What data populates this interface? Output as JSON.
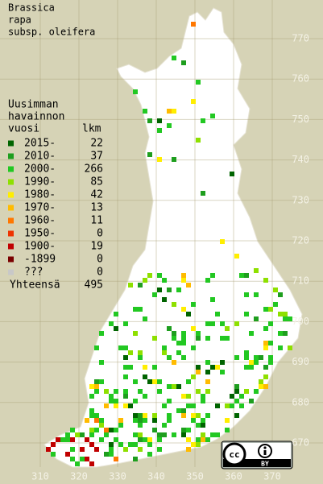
{
  "title": [
    "Brassica",
    "rapa",
    "subsp. oleifera"
  ],
  "legend": {
    "header": [
      "Uusimman",
      "havainnon",
      "vuosi"
    ],
    "count_header": "lkm",
    "rows": [
      {
        "label": "2015-",
        "color": "#006400",
        "count": 22
      },
      {
        "label": "2010-",
        "color": "#1e9e1e",
        "count": 37
      },
      {
        "label": "2000-",
        "color": "#22c822",
        "count": 266
      },
      {
        "label": "1990-",
        "color": "#8ee000",
        "count": 85
      },
      {
        "label": "1980-",
        "color": "#ffee00",
        "count": 42
      },
      {
        "label": "1970-",
        "color": "#ffbb00",
        "count": 13
      },
      {
        "label": "1960-",
        "color": "#ff7700",
        "count": 11
      },
      {
        "label": "1950-",
        "color": "#ee3300",
        "count": 0
      },
      {
        "label": "1900-",
        "color": "#c00000",
        "count": 19
      },
      {
        "label": "-1899",
        "color": "#7a0000",
        "count": 0
      },
      {
        "label": "???",
        "color": "#c8c8c8",
        "count": 0
      }
    ],
    "total_label": "Yhteensä",
    "total": 495
  },
  "axes": {
    "xticks": [
      310,
      320,
      330,
      340,
      350,
      360,
      370
    ],
    "yticks": [
      670,
      680,
      690,
      700,
      710,
      720,
      730,
      740,
      750,
      760,
      770
    ]
  },
  "license": {
    "icon": "cc",
    "label": "BY"
  }
}
